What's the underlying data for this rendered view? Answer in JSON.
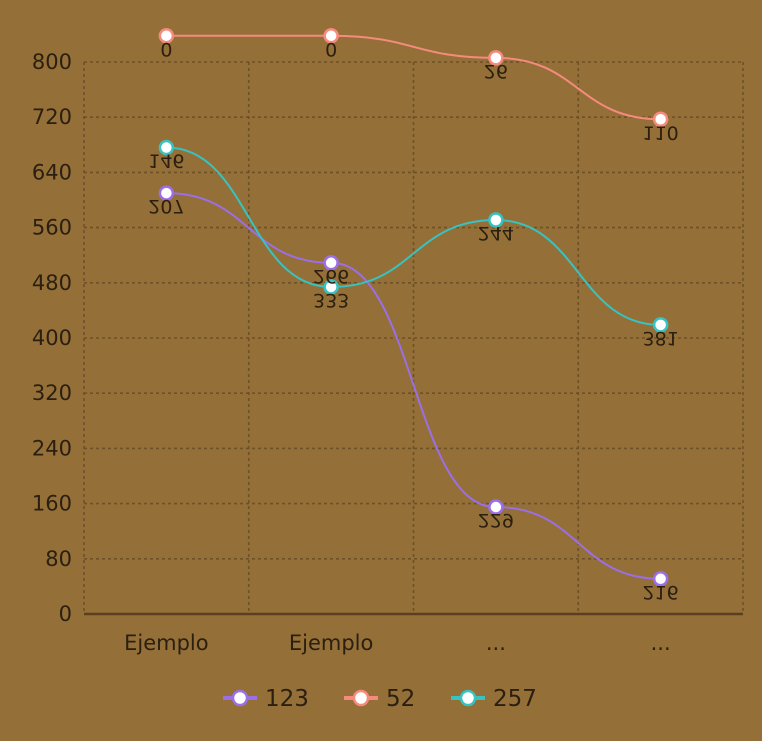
{
  "chart_data": {
    "type": "line",
    "categories": [
      "Ejemplo",
      "Ejemplo",
      "...",
      "..."
    ],
    "ylim": [
      0,
      800
    ],
    "yticks": [
      0,
      80,
      160,
      240,
      320,
      400,
      480,
      560,
      640,
      720,
      800
    ],
    "grid": true,
    "legend_position": "bottom",
    "series": [
      {
        "name": "123",
        "color": "#9b6fe6",
        "values": [
          610,
          509,
          155,
          51
        ],
        "labels": [
          "207",
          "266",
          "229",
          "216"
        ]
      },
      {
        "name": "52",
        "color": "#f58b7e",
        "values": [
          838,
          838,
          806,
          717
        ],
        "labels": [
          "0",
          "0",
          "26",
          "110"
        ]
      },
      {
        "name": "257",
        "color": "#38c2c2",
        "values": [
          676,
          474,
          571,
          419
        ],
        "labels": [
          "146",
          "333",
          "244",
          "381"
        ]
      }
    ]
  }
}
